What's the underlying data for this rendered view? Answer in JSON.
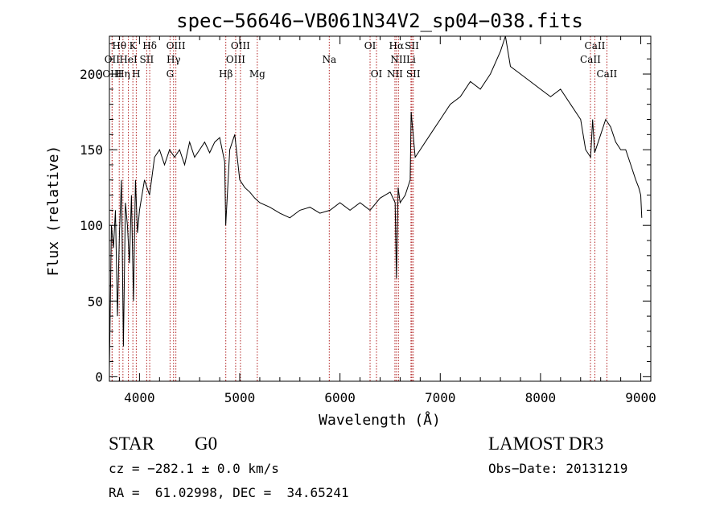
{
  "chart_data": {
    "type": "line",
    "title": "spec−56646−VB061N34V2_sp04−038.fits",
    "xlabel": "Wavelength (Å)",
    "ylabel": "Flux (relative)",
    "xlim": [
      3700,
      9100
    ],
    "ylim": [
      -3,
      225
    ],
    "x_ticks": [
      4000,
      5000,
      6000,
      7000,
      8000,
      9000
    ],
    "y_ticks": [
      0,
      50,
      100,
      150,
      200
    ],
    "grid": false,
    "colors": {
      "line": "#000000",
      "marker_lines": "#b22222"
    },
    "series": [
      {
        "x": [
          3700,
          3720,
          3740,
          3760,
          3780,
          3800,
          3820,
          3840,
          3860,
          3880,
          3900,
          3920,
          3940,
          3960,
          3980,
          4000,
          4050,
          4100,
          4150,
          4200,
          4250,
          4300,
          4350,
          4400,
          4450,
          4500,
          4550,
          4600,
          4650,
          4700,
          4750,
          4800,
          4850,
          4860,
          4900,
          4950,
          5000,
          5050,
          5100,
          5150,
          5200,
          5300,
          5400,
          5500,
          5600,
          5700,
          5800,
          5900,
          6000,
          6100,
          6200,
          6300,
          6400,
          6500,
          6550,
          6563,
          6580,
          6600,
          6650,
          6700,
          6710,
          6750,
          6800,
          6900,
          7000,
          7100,
          7200,
          7300,
          7400,
          7500,
          7600,
          7650,
          7700,
          7800,
          7900,
          8000,
          8100,
          8200,
          8300,
          8400,
          8450,
          8500,
          8520,
          8540,
          8600,
          8650,
          8700,
          8750,
          8800,
          8850,
          8900,
          8950,
          8980,
          9000,
          9010
        ],
        "y": [
          5,
          100,
          85,
          110,
          40,
          95,
          130,
          20,
          115,
          100,
          75,
          120,
          50,
          130,
          95,
          110,
          130,
          120,
          145,
          150,
          140,
          150,
          145,
          150,
          140,
          155,
          145,
          150,
          155,
          148,
          155,
          158,
          142,
          100,
          150,
          160,
          130,
          125,
          122,
          118,
          115,
          112,
          108,
          105,
          110,
          112,
          108,
          110,
          115,
          110,
          115,
          110,
          118,
          122,
          115,
          65,
          125,
          115,
          120,
          130,
          175,
          145,
          150,
          160,
          170,
          180,
          185,
          195,
          190,
          200,
          215,
          225,
          205,
          200,
          195,
          190,
          185,
          190,
          180,
          170,
          150,
          145,
          170,
          148,
          160,
          170,
          165,
          155,
          150,
          150,
          140,
          130,
          125,
          120,
          105
        ]
      }
    ],
    "annotations": [
      {
        "label": "Hθ",
        "wavelength": 3798,
        "row": 0
      },
      {
        "label": "K",
        "wavelength": 3934,
        "row": 0
      },
      {
        "label": "Hδ",
        "wavelength": 4102,
        "row": 0
      },
      {
        "label": "OIII",
        "wavelength": 4363,
        "row": 0
      },
      {
        "label": "OIII",
        "wavelength": 5007,
        "row": 0
      },
      {
        "label": "OI",
        "wavelength": 6300,
        "row": 0
      },
      {
        "label": "Hα",
        "wavelength": 6563,
        "row": 0
      },
      {
        "label": "SII",
        "wavelength": 6717,
        "row": 0
      },
      {
        "label": "CaII",
        "wavelength": 8542,
        "row": 0
      },
      {
        "label": "OII",
        "wavelength": 3727,
        "row": 1
      },
      {
        "label": "HeI",
        "wavelength": 3889,
        "row": 1
      },
      {
        "label": "SII",
        "wavelength": 4072,
        "row": 1
      },
      {
        "label": "Hγ",
        "wavelength": 4340,
        "row": 1
      },
      {
        "label": "OIII",
        "wavelength": 4959,
        "row": 1
      },
      {
        "label": "Na",
        "wavelength": 5893,
        "row": 1
      },
      {
        "label": "NII",
        "wavelength": 6583,
        "row": 1
      },
      {
        "label": "Li",
        "wavelength": 6708,
        "row": 1
      },
      {
        "label": "CaII",
        "wavelength": 8498,
        "row": 1
      },
      {
        "label": "OIII",
        "wavelength": 3727,
        "row": 2
      },
      {
        "label": "Hη",
        "wavelength": 3835,
        "row": 2
      },
      {
        "label": "H",
        "wavelength": 3968,
        "row": 2
      },
      {
        "label": "G",
        "wavelength": 4305,
        "row": 2
      },
      {
        "label": "Hβ",
        "wavelength": 4861,
        "row": 2
      },
      {
        "label": "Mg",
        "wavelength": 5175,
        "row": 2
      },
      {
        "label": "OI",
        "wavelength": 6364,
        "row": 2
      },
      {
        "label": "NII",
        "wavelength": 6548,
        "row": 2
      },
      {
        "label": "SII",
        "wavelength": 6731,
        "row": 2
      },
      {
        "label": "CaII",
        "wavelength": 8662,
        "row": 2
      }
    ]
  },
  "info": {
    "object_type": "STAR",
    "subclass": "G0",
    "survey": "LAMOST DR3",
    "redshift": "cz = −282.1 ± 0.0 km/s",
    "obs_date": "Obs−Date: 20131219",
    "coords": "RA =  61.02998, DEC =  34.65241"
  }
}
